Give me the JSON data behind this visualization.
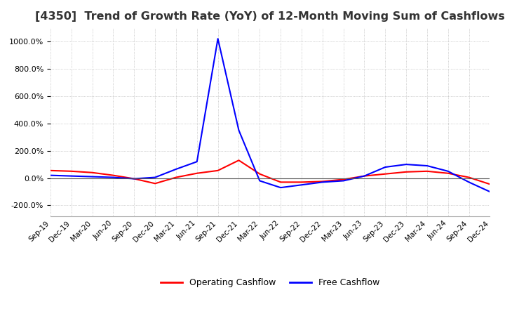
{
  "title": "[4350]  Trend of Growth Rate (YoY) of 12-Month Moving Sum of Cashflows",
  "title_fontsize": 11.5,
  "ylim": [
    -280,
    1100
  ],
  "yticks": [
    -200,
    0,
    200,
    400,
    600,
    800,
    1000
  ],
  "background_color": "#ffffff",
  "grid_color": "#aaaaaa",
  "legend_labels": [
    "Operating Cashflow",
    "Free Cashflow"
  ],
  "legend_colors": [
    "#ff0000",
    "#0000ff"
  ],
  "x_labels": [
    "Sep-19",
    "Dec-19",
    "Mar-20",
    "Jun-20",
    "Sep-20",
    "Dec-20",
    "Mar-21",
    "Jun-21",
    "Sep-21",
    "Dec-21",
    "Mar-22",
    "Jun-22",
    "Sep-22",
    "Dec-22",
    "Mar-23",
    "Jun-23",
    "Sep-23",
    "Dec-23",
    "Mar-24",
    "Jun-24",
    "Sep-24",
    "Dec-24"
  ],
  "operating_cashflow": [
    55,
    50,
    40,
    20,
    -5,
    -40,
    5,
    35,
    55,
    130,
    30,
    -30,
    -30,
    -25,
    -10,
    15,
    30,
    45,
    50,
    35,
    5,
    -45
  ],
  "free_cashflow": [
    20,
    15,
    10,
    5,
    -5,
    5,
    65,
    120,
    1020,
    350,
    -20,
    -70,
    -50,
    -30,
    -20,
    15,
    80,
    100,
    90,
    50,
    -30,
    -100
  ]
}
